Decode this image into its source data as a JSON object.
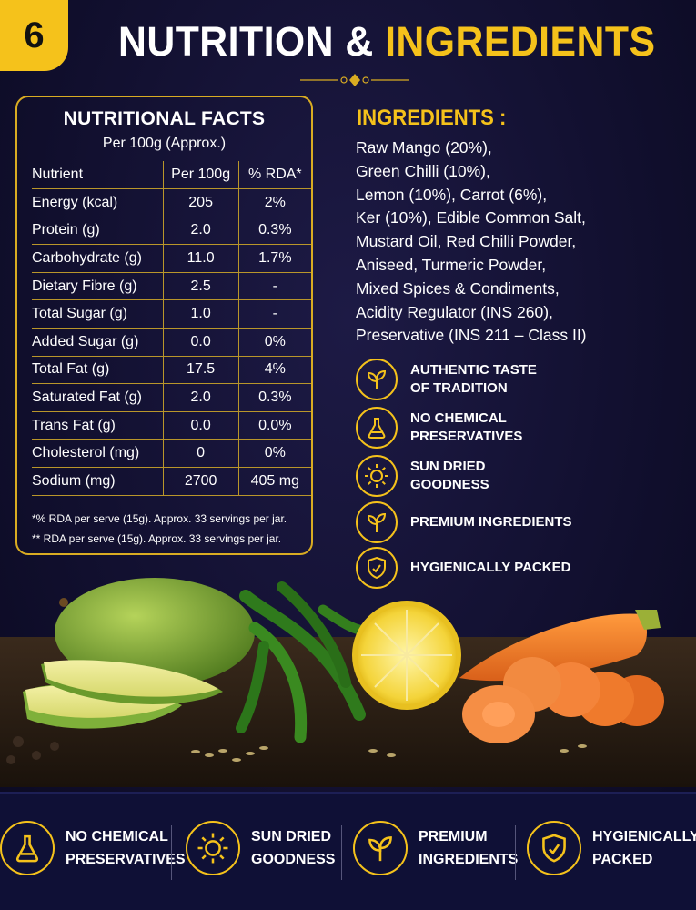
{
  "badge": "6",
  "title": {
    "part1": "NUTRITION &",
    "part2": "INGREDIENTS"
  },
  "nutrition": {
    "title": "NUTRITIONAL FACTS",
    "subtitle": "Per 100g (Approx.)",
    "headers": [
      "Nutrient",
      "Per 100g",
      "% RDA*"
    ],
    "rows": [
      [
        "Energy (kcal)",
        "205",
        "2%"
      ],
      [
        "Protein (g)",
        "2.0",
        "0.3%"
      ],
      [
        "Carbohydrate (g)",
        "11.0",
        "1.7%"
      ],
      [
        "Dietary Fibre (g)",
        "2.5",
        "-"
      ],
      [
        "Total Sugar (g)",
        "1.0",
        "-"
      ],
      [
        "Added Sugar (g)",
        "0.0",
        "0%"
      ],
      [
        "Total Fat (g)",
        "17.5",
        "4%"
      ],
      [
        "Saturated Fat (g)",
        "2.0",
        "0.3%"
      ],
      [
        "Trans Fat (g)",
        "0.0",
        "0.0%"
      ],
      [
        "Cholesterol (mg)",
        "0",
        "0%"
      ],
      [
        "Sodium (mg)",
        "2700",
        "405 mg"
      ]
    ],
    "note1": "*% RDA per serve (15g). Approx. 33 servings per jar.",
    "note2": "** RDA per serve (15g). Approx. 33 servings per jar."
  },
  "ingredients": {
    "title": "INGREDIENTS :",
    "lines": [
      "Raw Mango (20%),",
      "Green Chilli (10%),",
      "Lemon (10%), Carrot (6%),",
      "Ker (10%), Edible Common Salt,",
      "Mustard Oil, Red Chilli Powder,",
      "Aniseed, Turmeric Powder,",
      "Mixed Spices & Condiments,",
      "Acidity Regulator (INS 260),",
      "Preservative (INS 211 – Class II)"
    ]
  },
  "features": [
    {
      "line1": "AUTHENTIC TASTE",
      "line2": "OF TRADITION",
      "icon": "leaf-icon"
    },
    {
      "line1": "NO CHEMICAL",
      "line2": "PRESERVATIVES",
      "icon": "flask-icon"
    },
    {
      "line1": "SUN DRIED",
      "line2": "GOODNESS",
      "icon": "sun-icon"
    },
    {
      "line1": "PREMIUM INGREDIENTS",
      "line2": "",
      "icon": "leaf-icon"
    },
    {
      "line1": "HYGIENICALLY PACKED",
      "line2": "",
      "icon": "shield-icon"
    }
  ],
  "bottom": [
    {
      "line1": "NO CHEMICAL",
      "line2": "PRESERVATIVES",
      "icon": "flask-icon"
    },
    {
      "line1": "SUN DRIED",
      "line2": "GOODNESS",
      "icon": "sun-icon"
    },
    {
      "line1": "PREMIUM",
      "line2": "INGREDIENTS",
      "icon": "leaf-icon"
    },
    {
      "line1": "HYGIENICALLY",
      "line2": "PACKED",
      "icon": "shield-icon"
    }
  ],
  "colors": {
    "accent": "#f5c21b",
    "background": "#121030"
  }
}
